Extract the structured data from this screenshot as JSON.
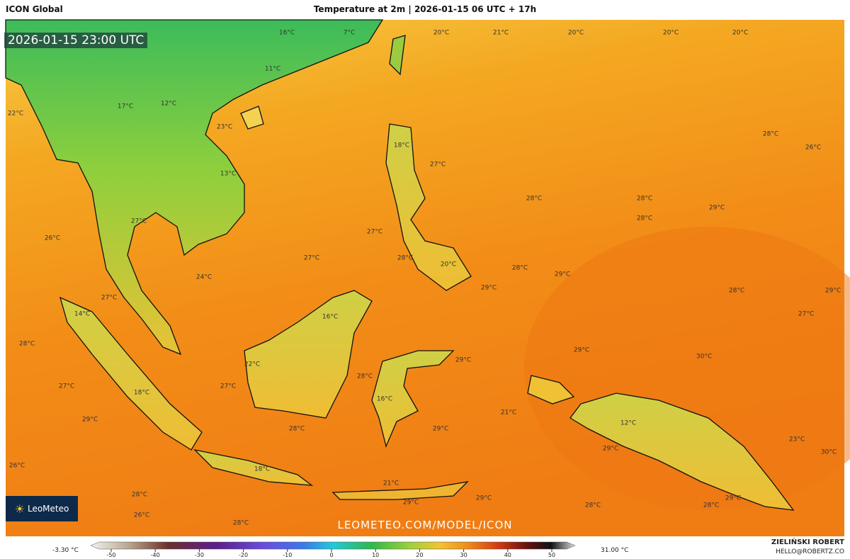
{
  "header": {
    "model": "ICON Global",
    "title": "Temperature at 2m | 2026-01-15 06 UTC + 17h"
  },
  "map": {
    "timestamp": "2026-01-15 23:00 UTC",
    "watermark": "LEOMETEO.COM/MODEL/ICON",
    "logo": "LeoMeteo",
    "labels": [
      "16°C",
      "7°C",
      "20°C",
      "21°C",
      "20°C",
      "20°C",
      "20°C",
      "11°C",
      "17°C",
      "12°C",
      "22°C",
      "23°C",
      "28°C",
      "18°C",
      "26°C",
      "27°C",
      "13°C",
      "28°C",
      "28°C",
      "29°C",
      "28°C",
      "27°C",
      "27°C",
      "26°C",
      "27°C",
      "28°C",
      "20°C",
      "28°C",
      "29°C",
      "24°C",
      "29°C",
      "28°C",
      "29°C",
      "27°C",
      "14°C",
      "16°C",
      "27°C",
      "28°C",
      "29°C",
      "30°C",
      "29°C",
      "22°C",
      "28°C",
      "27°C",
      "27°C",
      "18°C",
      "16°C",
      "21°C",
      "29°C",
      "28°C",
      "29°C",
      "12°C",
      "23°C",
      "29°C",
      "30°C",
      "26°C",
      "18°C",
      "21°C",
      "28°C",
      "29°C",
      "29°C",
      "29°C",
      "28°C",
      "28°C",
      "26°C",
      "28°C"
    ]
  },
  "legend": {
    "min_label": "-3.30 °C",
    "max_label": "31.00 °C",
    "ticks": [
      -50,
      -40,
      -30,
      -20,
      -10,
      0,
      10,
      20,
      30,
      40,
      50
    ]
  },
  "footer": {
    "author": "ZIELIŃSKI ROBERT",
    "contact": "HELLO@ROBERTZ.CO"
  }
}
